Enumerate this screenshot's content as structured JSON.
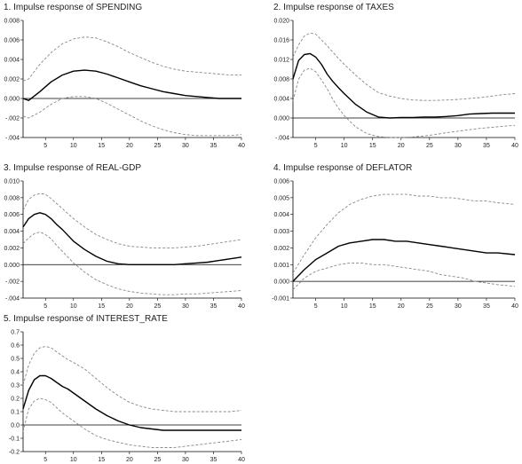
{
  "chart_data": [
    {
      "type": "line",
      "title": "1. Impulse response of SPENDING",
      "xlim": [
        1,
        40
      ],
      "ylim": [
        -0.004,
        0.008
      ],
      "xticks": [
        5,
        10,
        15,
        20,
        25,
        30,
        35,
        40
      ],
      "yticks": [
        -0.004,
        -0.002,
        0.0,
        0.002,
        0.004,
        0.006,
        0.008
      ],
      "ytick_labels": [
        "-.004",
        "-.002",
        "0.000",
        "0.002",
        "0.004",
        "0.006",
        "0.008"
      ],
      "x": [
        1,
        2,
        4,
        6,
        8,
        10,
        12,
        14,
        16,
        18,
        20,
        22,
        24,
        26,
        28,
        30,
        32,
        34,
        36,
        38,
        40
      ],
      "series": [
        {
          "role": "response",
          "style": "solid",
          "color": "#000000",
          "values": [
            0.0,
            -0.0002,
            0.0007,
            0.0017,
            0.0024,
            0.0028,
            0.0029,
            0.0028,
            0.0025,
            0.0021,
            0.0017,
            0.0013,
            0.001,
            0.0007,
            0.0005,
            0.0003,
            0.0002,
            0.0001,
            0.0,
            0.0,
            0.0
          ]
        },
        {
          "role": "upper band",
          "style": "dashed",
          "color": "#888888",
          "values": [
            0.0018,
            0.002,
            0.0035,
            0.0047,
            0.0056,
            0.0061,
            0.0063,
            0.0062,
            0.0058,
            0.0053,
            0.0047,
            0.0042,
            0.0037,
            0.0033,
            0.003,
            0.0028,
            0.0027,
            0.0026,
            0.0025,
            0.0024,
            0.0024
          ]
        },
        {
          "role": "lower band",
          "style": "dashed",
          "color": "#888888",
          "values": [
            -0.0018,
            -0.002,
            -0.0014,
            -0.0006,
            0.0,
            0.0002,
            0.0002,
            0.0,
            -0.0005,
            -0.0011,
            -0.0017,
            -0.0023,
            -0.0028,
            -0.0032,
            -0.0035,
            -0.0037,
            -0.0038,
            -0.0038,
            -0.0038,
            -0.0038,
            -0.0037
          ]
        }
      ]
    },
    {
      "type": "line",
      "title": "2. Impulse response of TAXES",
      "xlim": [
        1,
        40
      ],
      "ylim": [
        -0.004,
        0.02
      ],
      "xticks": [
        5,
        10,
        15,
        20,
        25,
        30,
        35,
        40
      ],
      "yticks": [
        -0.004,
        0.0,
        0.004,
        0.008,
        0.012,
        0.016,
        0.02
      ],
      "ytick_labels": [
        "-.004",
        "0.000",
        "0.004",
        "0.008",
        "0.012",
        "0.016",
        "0.020"
      ],
      "x": [
        1,
        2,
        3,
        4,
        5,
        6,
        7,
        8,
        9,
        10,
        12,
        14,
        16,
        18,
        20,
        22,
        24,
        26,
        28,
        30,
        32,
        34,
        36,
        38,
        40
      ],
      "series": [
        {
          "role": "response",
          "style": "solid",
          "color": "#000000",
          "values": [
            0.008,
            0.0118,
            0.013,
            0.0132,
            0.0125,
            0.011,
            0.009,
            0.0075,
            0.0062,
            0.005,
            0.0028,
            0.0012,
            0.0002,
            0.0,
            0.0001,
            0.0001,
            0.0002,
            0.0002,
            0.0003,
            0.0005,
            0.0008,
            0.0009,
            0.001,
            0.001,
            0.001
          ]
        },
        {
          "role": "upper band",
          "style": "dashed",
          "color": "#888888",
          "values": [
            0.0125,
            0.015,
            0.0168,
            0.0174,
            0.0172,
            0.016,
            0.0148,
            0.0135,
            0.0122,
            0.011,
            0.0088,
            0.0068,
            0.0052,
            0.0045,
            0.004,
            0.0037,
            0.0036,
            0.0036,
            0.0037,
            0.0038,
            0.004,
            0.0042,
            0.0045,
            0.0048,
            0.005
          ]
        },
        {
          "role": "lower band",
          "style": "dashed",
          "color": "#888888",
          "values": [
            0.0035,
            0.008,
            0.0098,
            0.0102,
            0.0095,
            0.0078,
            0.006,
            0.0038,
            0.002,
            0.0005,
            -0.0018,
            -0.0032,
            -0.0038,
            -0.004,
            -0.004,
            -0.0039,
            -0.0037,
            -0.0034,
            -0.003,
            -0.0027,
            -0.0024,
            -0.0021,
            -0.0019,
            -0.0017,
            -0.0015
          ]
        }
      ]
    },
    {
      "type": "line",
      "title": "3. Impulse response of REAL-GDP",
      "xlim": [
        1,
        40
      ],
      "ylim": [
        -0.004,
        0.01
      ],
      "xticks": [
        5,
        10,
        15,
        20,
        25,
        30,
        35,
        40
      ],
      "yticks": [
        -0.004,
        -0.002,
        0.0,
        0.002,
        0.004,
        0.006,
        0.008,
        0.01
      ],
      "ytick_labels": [
        "-.004",
        "-.002",
        "0.000",
        "0.002",
        "0.004",
        "0.006",
        "0.008",
        "0.010"
      ],
      "x": [
        1,
        2,
        3,
        4,
        5,
        6,
        7,
        8,
        9,
        10,
        12,
        14,
        16,
        18,
        20,
        22,
        24,
        26,
        28,
        30,
        32,
        34,
        36,
        38,
        40
      ],
      "series": [
        {
          "role": "response",
          "style": "solid",
          "color": "#000000",
          "values": [
            0.0045,
            0.0055,
            0.006,
            0.0062,
            0.006,
            0.0055,
            0.0048,
            0.0042,
            0.0035,
            0.0028,
            0.0018,
            0.001,
            0.0004,
            0.0001,
            0.0,
            0.0,
            0.0,
            0.0,
            0.0,
            0.0001,
            0.0002,
            0.0003,
            0.0005,
            0.0007,
            0.0009
          ]
        },
        {
          "role": "upper band",
          "style": "dashed",
          "color": "#888888",
          "values": [
            0.0065,
            0.0078,
            0.0083,
            0.0085,
            0.0084,
            0.0079,
            0.0073,
            0.0067,
            0.0061,
            0.0055,
            0.0045,
            0.0036,
            0.003,
            0.0025,
            0.0022,
            0.0021,
            0.002,
            0.002,
            0.002,
            0.0021,
            0.0022,
            0.0024,
            0.0026,
            0.0028,
            0.003
          ]
        },
        {
          "role": "lower band",
          "style": "dashed",
          "color": "#888888",
          "values": [
            0.0025,
            0.0032,
            0.0037,
            0.0039,
            0.0036,
            0.0031,
            0.0023,
            0.0016,
            0.0009,
            0.0002,
            -0.0009,
            -0.0018,
            -0.0024,
            -0.0029,
            -0.0032,
            -0.0034,
            -0.0035,
            -0.0036,
            -0.0036,
            -0.0035,
            -0.0035,
            -0.0034,
            -0.0033,
            -0.0032,
            -0.0031
          ]
        }
      ]
    },
    {
      "type": "line",
      "title": "4. Impulse response of DEFLATOR",
      "xlim": [
        1,
        40
      ],
      "ylim": [
        -0.001,
        0.006
      ],
      "xticks": [
        5,
        10,
        15,
        20,
        25,
        30,
        35,
        40
      ],
      "yticks": [
        -0.001,
        0.0,
        0.001,
        0.002,
        0.003,
        0.004,
        0.005,
        0.006
      ],
      "ytick_labels": [
        "-0.001",
        "0.000",
        "0.001",
        "0.002",
        "0.003",
        "0.004",
        "0.005",
        "0.006"
      ],
      "x": [
        1,
        3,
        5,
        7,
        9,
        11,
        13,
        15,
        17,
        19,
        21,
        23,
        25,
        27,
        29,
        31,
        33,
        35,
        37,
        40
      ],
      "series": [
        {
          "role": "response",
          "style": "solid",
          "color": "#000000",
          "values": [
            0.0,
            0.0007,
            0.0013,
            0.0017,
            0.0021,
            0.0023,
            0.0024,
            0.0025,
            0.0025,
            0.0024,
            0.0024,
            0.0023,
            0.0022,
            0.0021,
            0.002,
            0.0019,
            0.0018,
            0.0017,
            0.0017,
            0.0016
          ]
        },
        {
          "role": "upper band",
          "style": "dashed",
          "color": "#888888",
          "values": [
            0.0005,
            0.0016,
            0.0026,
            0.0034,
            0.0041,
            0.0046,
            0.0049,
            0.0051,
            0.0052,
            0.0052,
            0.0052,
            0.0051,
            0.0051,
            0.005,
            0.005,
            0.0049,
            0.0048,
            0.0048,
            0.0047,
            0.0046
          ]
        },
        {
          "role": "lower band",
          "style": "dashed",
          "color": "#888888",
          "values": [
            -0.0005,
            0.0002,
            0.0006,
            0.0008,
            0.001,
            0.0011,
            0.0011,
            0.001,
            0.001,
            0.0009,
            0.0008,
            0.0007,
            0.0006,
            0.0004,
            0.0003,
            0.0002,
            0.0,
            -0.0001,
            -0.0002,
            -0.0003
          ]
        }
      ]
    },
    {
      "type": "line",
      "title": "5. Impulse response of INTEREST_RATE",
      "xlim": [
        1,
        40
      ],
      "ylim": [
        -0.2,
        0.7
      ],
      "xticks": [
        5,
        10,
        15,
        20,
        25,
        30,
        35,
        40
      ],
      "yticks": [
        -0.2,
        -0.1,
        0.0,
        0.1,
        0.2,
        0.3,
        0.4,
        0.5,
        0.6,
        0.7
      ],
      "ytick_labels": [
        "-0.2",
        "-0.1",
        "0.0",
        "0.1",
        "0.2",
        "0.3",
        "0.4",
        "0.5",
        "0.6",
        "0.7"
      ],
      "x": [
        1,
        2,
        3,
        4,
        5,
        6,
        7,
        8,
        9,
        10,
        12,
        14,
        16,
        18,
        20,
        22,
        24,
        26,
        28,
        30,
        32,
        34,
        36,
        38,
        40
      ],
      "series": [
        {
          "role": "response",
          "style": "solid",
          "color": "#000000",
          "values": [
            0.12,
            0.26,
            0.34,
            0.37,
            0.37,
            0.35,
            0.32,
            0.29,
            0.27,
            0.24,
            0.18,
            0.12,
            0.07,
            0.03,
            0.0,
            -0.02,
            -0.03,
            -0.04,
            -0.04,
            -0.04,
            -0.04,
            -0.04,
            -0.04,
            -0.04,
            -0.04
          ]
        },
        {
          "role": "upper band",
          "style": "dashed",
          "color": "#888888",
          "values": [
            0.3,
            0.45,
            0.54,
            0.58,
            0.59,
            0.58,
            0.55,
            0.52,
            0.49,
            0.47,
            0.42,
            0.35,
            0.28,
            0.22,
            0.17,
            0.14,
            0.12,
            0.11,
            0.1,
            0.1,
            0.1,
            0.1,
            0.1,
            0.1,
            0.11
          ]
        },
        {
          "role": "lower band",
          "style": "dashed",
          "color": "#888888",
          "values": [
            -0.05,
            0.12,
            0.18,
            0.2,
            0.19,
            0.17,
            0.13,
            0.09,
            0.06,
            0.03,
            -0.03,
            -0.08,
            -0.11,
            -0.13,
            -0.15,
            -0.16,
            -0.17,
            -0.17,
            -0.17,
            -0.16,
            -0.15,
            -0.14,
            -0.13,
            -0.12,
            -0.11
          ]
        }
      ]
    }
  ]
}
